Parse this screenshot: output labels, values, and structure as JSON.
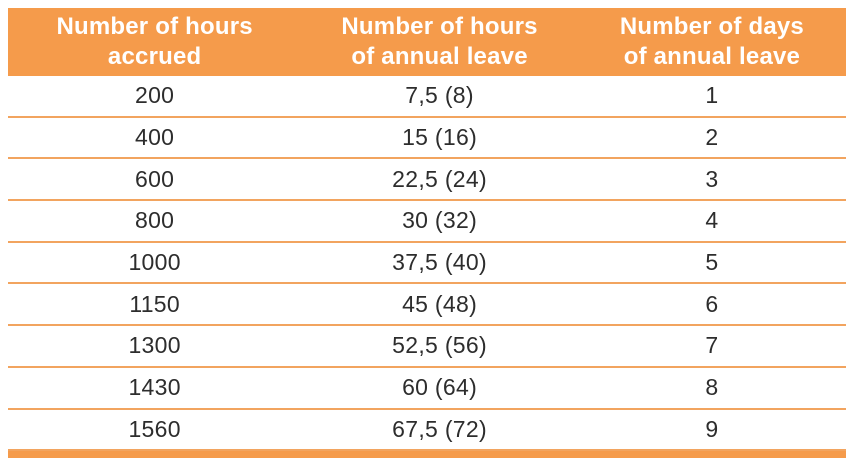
{
  "accent_color": "#F59B4B",
  "separator_color": "#F2A45F",
  "header_text_color": "#FFFFFF",
  "body_text_color": "#2D2D2D",
  "header": {
    "col1": "Number of hours\naccrued",
    "col2": "Number of hours\nof annual leave",
    "col3": "Number of days\nof annual leave"
  },
  "chart_data": {
    "type": "table",
    "columns": [
      "Number of hours accrued",
      "Number of hours of annual leave",
      "Number of days of annual leave"
    ],
    "rows": [
      [
        "200",
        "7,5 (8)",
        "1"
      ],
      [
        "400",
        "15 (16)",
        "2"
      ],
      [
        "600",
        "22,5 (24)",
        "3"
      ],
      [
        "800",
        "30 (32)",
        "4"
      ],
      [
        "1000",
        "37,5 (40)",
        "5"
      ],
      [
        "1150",
        "45 (48)",
        "6"
      ],
      [
        "1300",
        "52,5 (56)",
        "7"
      ],
      [
        "1430",
        "60 (64)",
        "8"
      ],
      [
        "1560",
        "67,5 (72)",
        "9"
      ]
    ],
    "layout": {
      "header_background": "#F59B4B",
      "row_separators": true,
      "bottom_bar": true
    }
  }
}
